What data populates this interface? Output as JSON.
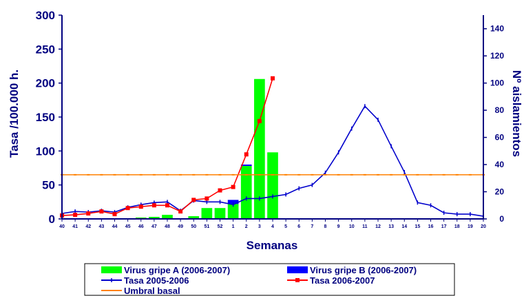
{
  "chart_data": {
    "type": "bar",
    "xlabel": "Semanas",
    "ylabel": "Tasa /100.000 h.",
    "y2label": "Nº aislamientos",
    "ylim": [
      0,
      300
    ],
    "y2lim": [
      0,
      150
    ],
    "yticks": [
      "0",
      "50",
      "100",
      "150",
      "200",
      "250",
      "300"
    ],
    "y2ticks": [
      "0",
      "20",
      "40",
      "60",
      "80",
      "100",
      "120",
      "140"
    ],
    "categories": [
      "40",
      "41",
      "42",
      "43",
      "44",
      "45",
      "46",
      "47",
      "48",
      "49",
      "50",
      "51",
      "52",
      "1",
      "2",
      "3",
      "4",
      "5",
      "6",
      "7",
      "8",
      "9",
      "10",
      "11",
      "12",
      "13",
      "14",
      "15",
      "16",
      "17",
      "18",
      "19",
      "20"
    ],
    "grid": false,
    "legend_position": "bottom",
    "series": [
      {
        "name": "Virus gripe A (2006-2007)",
        "kind": "bar",
        "axis": "y2",
        "color": "#00ff00",
        "values": [
          0,
          0,
          0.5,
          0.5,
          0.5,
          0,
          1,
          1.5,
          3,
          0.5,
          2,
          8,
          8,
          11,
          39,
          103,
          49,
          null,
          null,
          null,
          null,
          null,
          null,
          null,
          null,
          null,
          null,
          null,
          null,
          null,
          null,
          null,
          null
        ]
      },
      {
        "name": "Virus gripe B (2006-2007)",
        "kind": "bar",
        "axis": "y2",
        "color": "#0000ff",
        "values": [
          0,
          0,
          0,
          0,
          0,
          0,
          0,
          0,
          0,
          0,
          0,
          0,
          0,
          3,
          1,
          0,
          0,
          null,
          null,
          null,
          null,
          null,
          null,
          null,
          null,
          null,
          null,
          null,
          null,
          null,
          null,
          null,
          null
        ]
      },
      {
        "name": "Tasa 2005-2006",
        "kind": "line",
        "axis": "y",
        "color": "#0000cc",
        "values": [
          8,
          11,
          10,
          12,
          10,
          17,
          21,
          24,
          25,
          12,
          27,
          25,
          25,
          21,
          30,
          30,
          33,
          36,
          45,
          50,
          68,
          98,
          133,
          166,
          146,
          107,
          69,
          24,
          20,
          9,
          7,
          7,
          4
        ]
      },
      {
        "name": "Tasa 2006-2007",
        "kind": "line",
        "axis": "y",
        "color": "#ff0000",
        "values": [
          5,
          6,
          8,
          11,
          7,
          16,
          18,
          20,
          20,
          11,
          28,
          30,
          42,
          47,
          95,
          144,
          207,
          null,
          null,
          null,
          null,
          null,
          null,
          null,
          null,
          null,
          null,
          null,
          null,
          null,
          null,
          null,
          null
        ]
      },
      {
        "name": "Umbral basal",
        "kind": "line",
        "axis": "y",
        "color": "#ff8000",
        "values": [
          65,
          65,
          65,
          65,
          65,
          65,
          65,
          65,
          65,
          65,
          65,
          65,
          65,
          65,
          65,
          65,
          65,
          65,
          65,
          65,
          65,
          65,
          65,
          65,
          65,
          65,
          65,
          65,
          65,
          65,
          65,
          65,
          65
        ]
      }
    ]
  }
}
